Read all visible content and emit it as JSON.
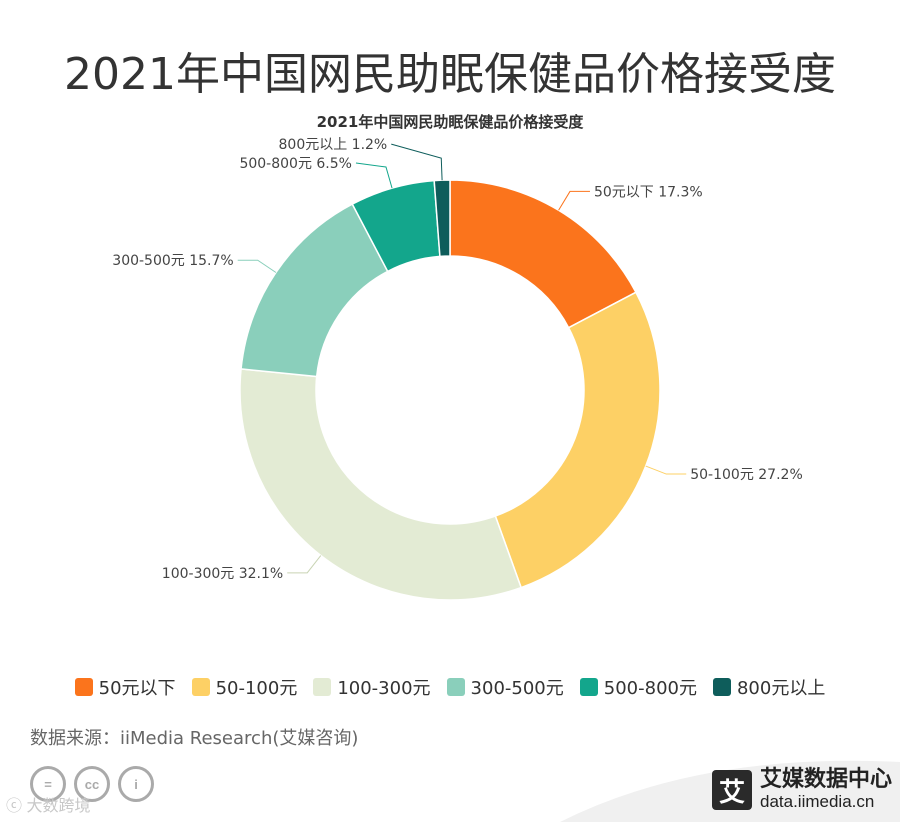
{
  "header": {
    "main_title": "2021年中国网民助眠保健品价格接受度"
  },
  "chart_data": {
    "type": "pie",
    "title": "2021年中国网民助眠保健品价格接受度",
    "donut": true,
    "legend_position": "bottom",
    "slices": [
      {
        "label": "50元以下",
        "value": 17.3,
        "display": "50元以下 17.3%",
        "color": "#fb741c"
      },
      {
        "label": "50-100元",
        "value": 27.2,
        "display": "50-100元 27.2%",
        "color": "#fdd065"
      },
      {
        "label": "100-300元",
        "value": 32.1,
        "display": "100-300元 32.1%",
        "color": "#e3ebd4"
      },
      {
        "label": "300-500元",
        "value": 15.7,
        "display": "300-500元 15.7%",
        "color": "#8acfbb"
      },
      {
        "label": "500-800元",
        "value": 6.5,
        "display": "500-800元 6.5%",
        "color": "#13a68c"
      },
      {
        "label": "800元以上",
        "value": 1.2,
        "display": "800元以上 1.2%",
        "color": "#0e5d5b"
      }
    ]
  },
  "footer": {
    "source": "数据来源：iiMedia Research(艾媒咨询)",
    "cc_icons": [
      "=",
      "cc",
      "i"
    ],
    "watermark": "ⓒ 大数跨境",
    "brand_mark": "艾",
    "brand_name": "艾媒数据中心",
    "brand_url": "data.iimedia.cn"
  }
}
